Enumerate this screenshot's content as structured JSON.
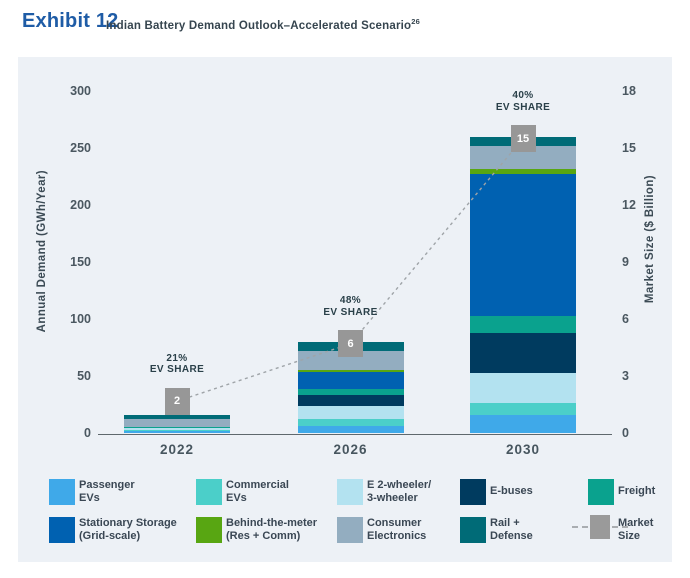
{
  "header": {
    "exhibit_label": "Exhibit 12",
    "title": "Indian Battery Demand Outlook–Accelerated Scenario",
    "footnote_ref": "26"
  },
  "chart_data": {
    "type": "bar",
    "stacked": true,
    "title": "Indian Battery Demand Outlook–Accelerated Scenario",
    "categories": [
      "2022",
      "2026",
      "2030"
    ],
    "series": [
      {
        "name": "Passenger EVs",
        "color": "#3FA9E9",
        "values": [
          2,
          7,
          16
        ]
      },
      {
        "name": "Commercial EVs",
        "color": "#4BCFC9",
        "values": [
          1.5,
          6,
          11
        ]
      },
      {
        "name": "E 2-wheeler/3-wheeler",
        "color": "#B3E2F0",
        "values": [
          1,
          11,
          26
        ]
      },
      {
        "name": "E-buses",
        "color": "#003B5F",
        "values": [
          0,
          10,
          35
        ]
      },
      {
        "name": "Freight",
        "color": "#0AA28E",
        "values": [
          1.5,
          5,
          15
        ]
      },
      {
        "name": "Stationary Storage (Grid-scale)",
        "color": "#0061B1",
        "values": [
          0,
          15,
          125
        ]
      },
      {
        "name": "Behind-the-meter (Res + Comm)",
        "color": "#58A612",
        "values": [
          0,
          1.5,
          4
        ]
      },
      {
        "name": "Consumer Electronics",
        "color": "#93ADC0",
        "values": [
          6.5,
          17,
          20
        ]
      },
      {
        "name": "Rail + Defense",
        "color": "#006B77",
        "values": [
          4,
          7.5,
          8
        ]
      }
    ],
    "line_series": {
      "name": "Market Size",
      "color": "#979797",
      "values": [
        2,
        6,
        15
      ]
    },
    "ev_share": {
      "percents": [
        "21%",
        "48%",
        "40%"
      ],
      "caption": "EV SHARE"
    },
    "left_axis": {
      "label": "Annual Demand (GWh/Year)",
      "ticks": [
        0,
        50,
        100,
        150,
        200,
        250,
        300
      ],
      "ylim": [
        0,
        300
      ]
    },
    "right_axis": {
      "label": "Market Size ($ Billion)",
      "ticks": [
        0,
        3,
        6,
        9,
        12,
        15,
        18
      ],
      "ylim": [
        0,
        18
      ]
    },
    "grid": false,
    "legend_position": "bottom"
  },
  "legend": {
    "items": [
      {
        "label_lines": [
          "Passenger",
          "EVs"
        ],
        "color": "#3FA9E9",
        "kind": "box"
      },
      {
        "label_lines": [
          "Commercial",
          "EVs"
        ],
        "color": "#4BCFC9",
        "kind": "box"
      },
      {
        "label_lines": [
          "E 2-wheeler/",
          "3-wheeler"
        ],
        "color": "#B3E2F0",
        "kind": "box"
      },
      {
        "label_lines": [
          "E-buses"
        ],
        "color": "#003B5F",
        "kind": "box"
      },
      {
        "label_lines": [
          "Freight"
        ],
        "color": "#0AA28E",
        "kind": "box"
      },
      {
        "label_lines": [
          "Stationary Storage",
          "(Grid-scale)"
        ],
        "color": "#0061B1",
        "kind": "box"
      },
      {
        "label_lines": [
          "Behind-the-meter",
          "(Res + Comm)"
        ],
        "color": "#58A612",
        "kind": "box"
      },
      {
        "label_lines": [
          "Consumer",
          "Electronics"
        ],
        "color": "#93ADC0",
        "kind": "box"
      },
      {
        "label_lines": [
          "Rail +",
          "Defense"
        ],
        "color": "#006B77",
        "kind": "box"
      },
      {
        "label_lines": [
          "Market",
          "Size"
        ],
        "color": "#9A9A9A",
        "kind": "marker"
      }
    ]
  }
}
